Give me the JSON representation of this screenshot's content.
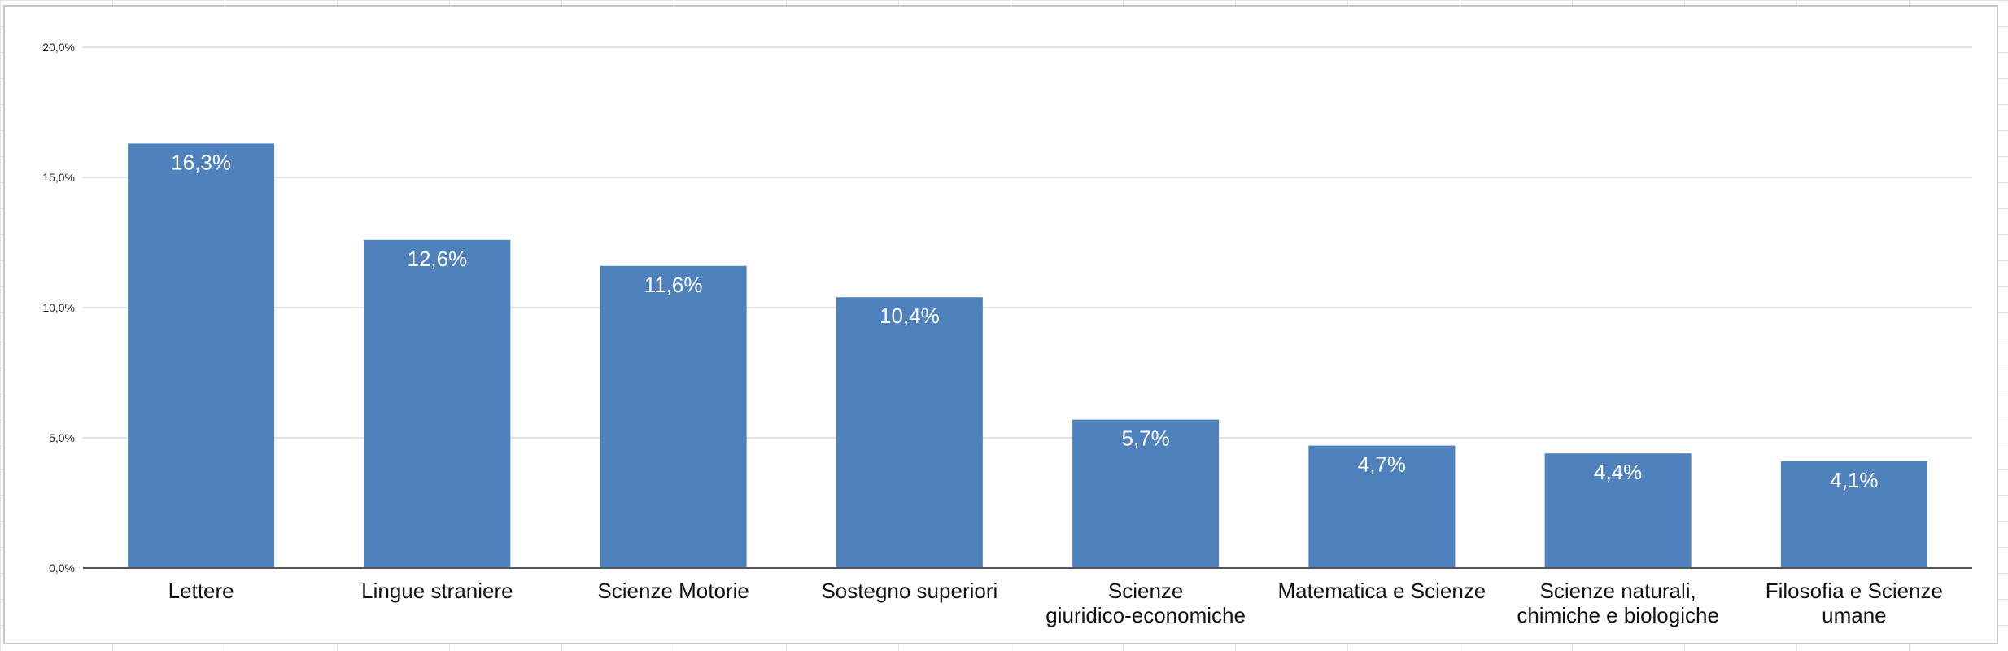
{
  "chart_data": {
    "type": "bar",
    "title": "",
    "xlabel": "",
    "ylabel": "",
    "categories": [
      "Lettere",
      "Lingue straniere",
      "Scienze Motorie",
      "Sostegno superiori",
      "Scienze giuridico-economiche",
      "Matematica e Scienze",
      "Scienze naturali, chimiche e biologiche",
      "Filosofia e Scienze umane"
    ],
    "category_label_lines": [
      [
        "Lettere"
      ],
      [
        "Lingue straniere"
      ],
      [
        "Scienze Motorie"
      ],
      [
        "Sostegno superiori"
      ],
      [
        "Scienze",
        "giuridico-economiche"
      ],
      [
        "Matematica e Scienze"
      ],
      [
        "Scienze naturali,",
        "chimiche e biologiche"
      ],
      [
        "Filosofia e Scienze",
        "umane"
      ]
    ],
    "values": [
      16.3,
      12.6,
      11.6,
      10.4,
      5.7,
      4.7,
      4.4,
      4.1
    ],
    "data_labels": [
      "16,3%",
      "12,6%",
      "11,6%",
      "10,4%",
      "5,7%",
      "4,7%",
      "4,4%",
      "4,1%"
    ],
    "ylim": [
      0,
      20
    ],
    "yticks": [
      0,
      5,
      10,
      15,
      20
    ],
    "ytick_labels": [
      "0,0%",
      "5,0%",
      "10,0%",
      "15,0%",
      "20,0%"
    ],
    "grid": true,
    "legend": "none",
    "colors": {
      "bar": "#4f81bd",
      "gridline": "#d9d9d9",
      "axis": "#555555"
    }
  }
}
